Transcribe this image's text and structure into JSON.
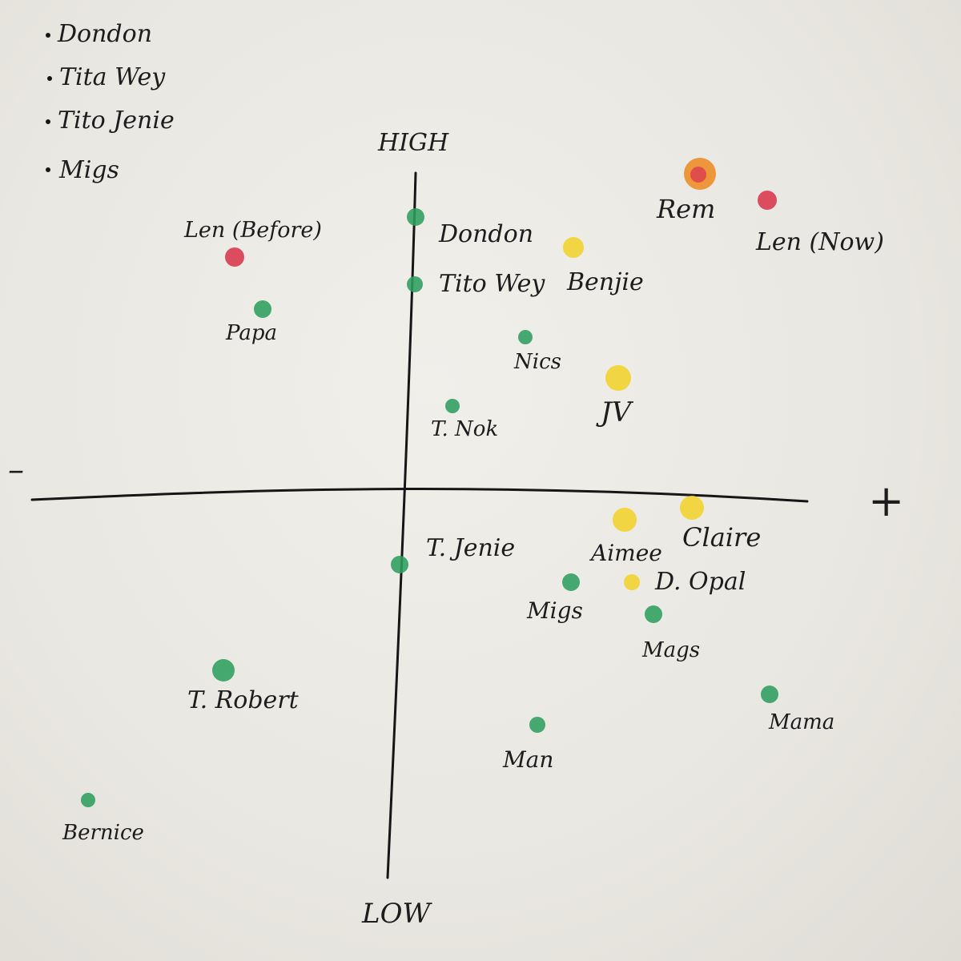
{
  "legend": {
    "items": [
      "Dondon",
      "Tita Wey",
      "Tito Jenie",
      "Migs"
    ]
  },
  "axes": {
    "top": "HIGH",
    "bottom": "LOW",
    "left": "–",
    "right": "+"
  },
  "colors": {
    "green": "#2e9e5f",
    "yellow": "#f2d22c",
    "red": "#d9364c",
    "orange": "#ee8a24",
    "ink": "#161618"
  },
  "points": [
    {
      "label": "Len (Before)",
      "color": "red"
    },
    {
      "label": "Papa",
      "color": "green"
    },
    {
      "label": "Dondon",
      "color": "green"
    },
    {
      "label": "Tito Wey",
      "color": "green"
    },
    {
      "label": "Benjie",
      "color": "yellow"
    },
    {
      "label": "Nics",
      "color": "green"
    },
    {
      "label": "T. Nok",
      "color": "green"
    },
    {
      "label": "JV",
      "color": "yellow"
    },
    {
      "label": "Rem",
      "color": "orange"
    },
    {
      "label": "Len (Now)",
      "color": "red"
    },
    {
      "label": "T. Jenie",
      "color": "green"
    },
    {
      "label": "Aimee",
      "color": "yellow"
    },
    {
      "label": "Claire",
      "color": "yellow"
    },
    {
      "label": "D. Opal",
      "color": "yellow"
    },
    {
      "label": "Migs",
      "color": "green"
    },
    {
      "label": "Mags",
      "color": "green"
    },
    {
      "label": "Mama",
      "color": "green"
    },
    {
      "label": "Man",
      "color": "green"
    },
    {
      "label": "T. Robert",
      "color": "green"
    },
    {
      "label": "Bernice",
      "color": "green"
    }
  ]
}
